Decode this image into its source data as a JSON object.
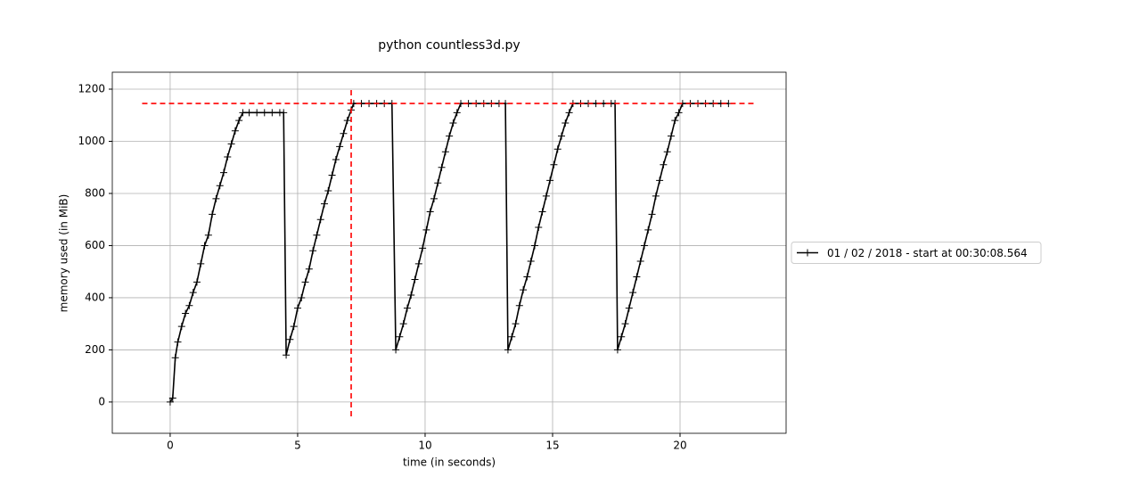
{
  "chart_data": {
    "type": "line",
    "title": "python countless3d.py",
    "x_label": "time (in seconds)",
    "y_label": "memory used (in MiB)",
    "xlim": [
      -2.27,
      24.16
    ],
    "ylim": [
      -120,
      1265
    ],
    "xticks": [
      0,
      5,
      10,
      15,
      20
    ],
    "yticks": [
      0,
      200,
      400,
      600,
      800,
      1000,
      1200
    ],
    "grid": true,
    "legend_position": "right",
    "series": [
      {
        "name": "01 / 02 / 2018 - start at 00:30:08.564",
        "color": "#000000",
        "marker": "+",
        "x": [
          0.0,
          0.1,
          0.2,
          0.3,
          0.45,
          0.6,
          0.75,
          0.9,
          1.05,
          1.2,
          1.35,
          1.5,
          1.65,
          1.8,
          1.95,
          2.1,
          2.25,
          2.4,
          2.55,
          2.7,
          2.85,
          3.1,
          3.4,
          3.7,
          4.0,
          4.3,
          4.45,
          4.55,
          4.7,
          4.85,
          5.0,
          5.15,
          5.3,
          5.45,
          5.6,
          5.75,
          5.9,
          6.05,
          6.2,
          6.35,
          6.5,
          6.65,
          6.8,
          6.95,
          7.1,
          7.2,
          7.5,
          7.8,
          8.1,
          8.4,
          8.7,
          8.85,
          9.0,
          9.15,
          9.3,
          9.45,
          9.6,
          9.75,
          9.9,
          10.05,
          10.2,
          10.35,
          10.5,
          10.65,
          10.8,
          10.95,
          11.1,
          11.25,
          11.4,
          11.7,
          12.0,
          12.3,
          12.6,
          12.9,
          13.15,
          13.25,
          13.4,
          13.55,
          13.7,
          13.85,
          14.0,
          14.15,
          14.3,
          14.45,
          14.6,
          14.75,
          14.9,
          15.05,
          15.2,
          15.35,
          15.5,
          15.65,
          15.8,
          16.1,
          16.4,
          16.7,
          17.0,
          17.3,
          17.45,
          17.55,
          17.7,
          17.85,
          18.0,
          18.15,
          18.3,
          18.45,
          18.6,
          18.75,
          18.9,
          19.05,
          19.2,
          19.35,
          19.5,
          19.65,
          19.8,
          19.95,
          20.1,
          20.4,
          20.7,
          21.0,
          21.3,
          21.6,
          21.9
        ],
        "values": [
          0,
          15,
          170,
          230,
          290,
          340,
          370,
          420,
          460,
          530,
          600,
          640,
          720,
          780,
          830,
          880,
          940,
          990,
          1040,
          1080,
          1110,
          1110,
          1110,
          1110,
          1110,
          1110,
          1110,
          180,
          240,
          290,
          360,
          400,
          460,
          510,
          580,
          640,
          700,
          760,
          810,
          870,
          930,
          980,
          1030,
          1080,
          1120,
          1145,
          1145,
          1145,
          1145,
          1145,
          1145,
          200,
          250,
          300,
          360,
          410,
          470,
          530,
          590,
          660,
          730,
          780,
          840,
          900,
          960,
          1020,
          1070,
          1110,
          1145,
          1145,
          1145,
          1145,
          1145,
          1145,
          1145,
          200,
          250,
          300,
          370,
          430,
          480,
          540,
          600,
          670,
          730,
          790,
          850,
          910,
          970,
          1020,
          1070,
          1110,
          1145,
          1145,
          1145,
          1145,
          1145,
          1145,
          1145,
          200,
          250,
          300,
          360,
          420,
          480,
          540,
          600,
          660,
          720,
          790,
          850,
          910,
          960,
          1020,
          1080,
          1110,
          1145,
          1145,
          1145,
          1145,
          1145,
          1145,
          1145
        ]
      }
    ],
    "max_memory_line": {
      "y": 1145,
      "xmin": -1.1,
      "xmax": 23,
      "color": "#ff0000"
    },
    "max_time_line": {
      "x": 7.1,
      "ymin": -55,
      "ymax": 1200,
      "color": "#ff0000"
    }
  }
}
